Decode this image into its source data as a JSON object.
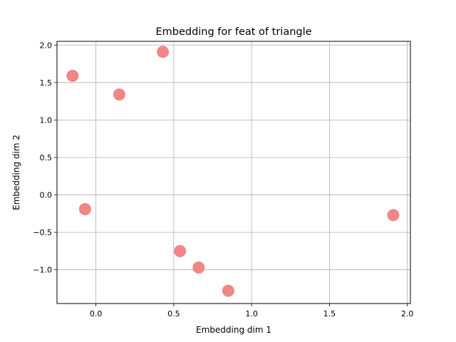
{
  "chart_data": {
    "type": "scatter",
    "title": "Embedding for feat of triangle",
    "xlabel": "Embedding dim 1",
    "ylabel": "Embedding dim 2",
    "xlim": [
      -0.25,
      2.02
    ],
    "ylim": [
      -1.45,
      2.05
    ],
    "xticks": [
      0.0,
      0.5,
      1.0,
      1.5,
      2.0
    ],
    "xtick_labels": [
      "0.0",
      "0.5",
      "1.0",
      "1.5",
      "2.0"
    ],
    "yticks": [
      -1.0,
      -0.5,
      0.0,
      0.5,
      1.0,
      1.5,
      2.0
    ],
    "ytick_labels": [
      "−1.0",
      "−0.5",
      "0.0",
      "0.5",
      "1.0",
      "1.5",
      "2.0"
    ],
    "grid": true,
    "marker_color": "#f08080",
    "points": [
      {
        "x": -0.15,
        "y": 1.59
      },
      {
        "x": 0.43,
        "y": 1.91
      },
      {
        "x": 0.15,
        "y": 1.34
      },
      {
        "x": -0.07,
        "y": -0.19
      },
      {
        "x": 1.91,
        "y": -0.27
      },
      {
        "x": 0.54,
        "y": -0.75
      },
      {
        "x": 0.66,
        "y": -0.97
      },
      {
        "x": 0.85,
        "y": -1.28
      }
    ]
  }
}
